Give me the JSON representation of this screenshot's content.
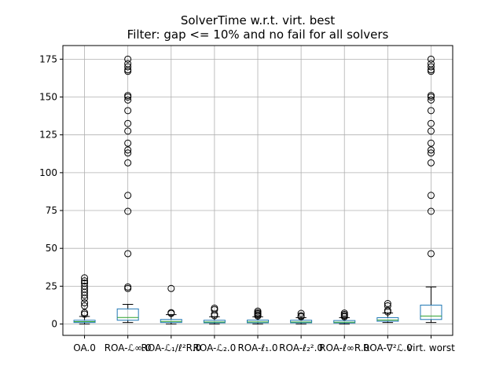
{
  "chart_data": {
    "type": "box",
    "title": "SolverTime w.r.t. virt. best",
    "subtitle": "Filter: gap <= 10% and no fail for all solvers",
    "xlabel": "",
    "ylabel": "",
    "ylim": [
      -7.5,
      184
    ],
    "yticks": [
      0,
      25,
      50,
      75,
      100,
      125,
      150,
      175
    ],
    "grid": true,
    "categories": [
      "OA.0",
      "ROA-ℒ∞.0",
      "ROA-ℒ₁/ℓ²R.0",
      "ROA-ℒ₂.0",
      "ROA-ℓ₁.0",
      "ROA-ℓ₂².0",
      "ROA-ℓ∞R.0",
      "ROA-∇²ℒ.0",
      "virt. worst"
    ],
    "boxes": [
      {
        "whislo": 0,
        "q1": 1.0,
        "med": 1.6,
        "q3": 2.5,
        "whishi": 5.0,
        "fliers": [
          6.5,
          7.5,
          12,
          14,
          17,
          19,
          21,
          23,
          25,
          27,
          28.5,
          30.5
        ]
      },
      {
        "whislo": 1.0,
        "q1": 2.5,
        "med": 4.3,
        "q3": 10.0,
        "whishi": 13.0,
        "fliers": [
          23.5,
          24.5,
          46.5,
          74.5,
          85,
          106.5,
          113,
          115,
          119.5,
          127.5,
          132.5,
          141,
          148,
          150,
          151,
          167,
          168,
          170,
          172,
          175
        ]
      },
      {
        "whislo": 0,
        "q1": 1.0,
        "med": 1.7,
        "q3": 3.0,
        "whishi": 6.2,
        "fliers": [
          7.0,
          7.5,
          23.5
        ]
      },
      {
        "whislo": 0,
        "q1": 0.8,
        "med": 1.3,
        "q3": 2.5,
        "whishi": 4.8,
        "fliers": [
          5.5,
          6.5,
          9.5,
          10.5
        ]
      },
      {
        "whislo": 0,
        "q1": 0.8,
        "med": 1.4,
        "q3": 2.6,
        "whishi": 4.8,
        "fliers": [
          5.3,
          6.0,
          6.8,
          7.5,
          8.5
        ]
      },
      {
        "whislo": 0,
        "q1": 0.8,
        "med": 1.3,
        "q3": 2.5,
        "whishi": 4.2,
        "fliers": [
          4.8,
          5.5,
          7.0
        ]
      },
      {
        "whislo": 0,
        "q1": 0.7,
        "med": 1.2,
        "q3": 2.3,
        "whishi": 4.2,
        "fliers": [
          4.8,
          5.5,
          6.3,
          7.2
        ]
      },
      {
        "whislo": 1.0,
        "q1": 1.8,
        "med": 2.6,
        "q3": 4.2,
        "whishi": 7.3,
        "fliers": [
          8.0,
          9.0,
          12.0,
          13.5
        ]
      },
      {
        "whislo": 1.0,
        "q1": 3.0,
        "med": 5.3,
        "q3": 12.5,
        "whishi": 24.5,
        "fliers": [
          46.5,
          74.5,
          85,
          106.5,
          113,
          115,
          119.5,
          127.5,
          132.5,
          141,
          148,
          150,
          151,
          167,
          168,
          170,
          172,
          175
        ]
      }
    ]
  }
}
